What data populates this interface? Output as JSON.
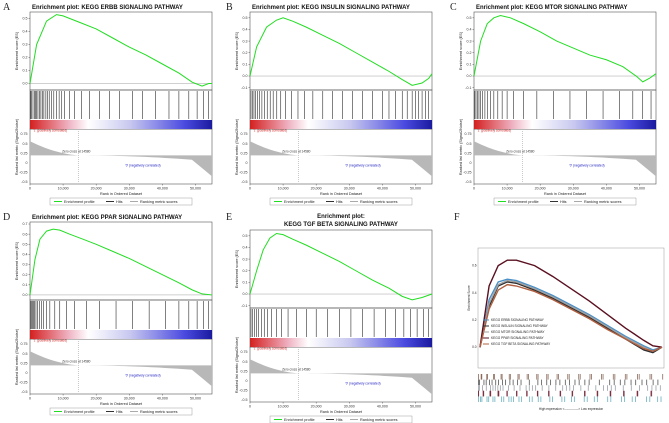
{
  "figure": {
    "panel_labels": [
      "A",
      "B",
      "C",
      "D",
      "E",
      "F"
    ]
  },
  "chart_data": [
    {
      "type": "line",
      "panel": "A",
      "title": "Enrichment plot: KEGG ERBB SIGNALING PATHWAY",
      "ylabel": "Enrichment score (ES)",
      "ylabel2": "Ranked list metric (Signal2Noise)",
      "xlabel": "Rank in Ordered Dataset",
      "ylim": [
        -0.05,
        0.55
      ],
      "yticks": [
        0.0,
        0.1,
        0.2,
        0.3,
        0.4,
        0.5
      ],
      "xticks": [
        0,
        10000,
        20000,
        30000,
        40000,
        50000
      ],
      "xtick_labels": [
        "0",
        "10,000",
        "20,000",
        "30,000",
        "40,000",
        "50,000"
      ],
      "metric_ticks": [
        "0.75",
        "0.5",
        "0.25",
        "0",
        "-0.25",
        "-0.5"
      ],
      "xlim": [
        0,
        55000
      ],
      "es_x": [
        0,
        2000,
        5000,
        8000,
        10000,
        12000,
        15000,
        20000,
        25000,
        30000,
        35000,
        40000,
        45000,
        49000,
        52000,
        54000,
        55000
      ],
      "es_y": [
        0.0,
        0.3,
        0.48,
        0.53,
        0.52,
        0.5,
        0.47,
        0.42,
        0.35,
        0.28,
        0.22,
        0.15,
        0.08,
        0.01,
        -0.02,
        0.0,
        0.0
      ],
      "hits": [
        200,
        500,
        900,
        1300,
        1600,
        2000,
        2400,
        2800,
        3300,
        3700,
        4200,
        4800,
        5300,
        5800,
        6500,
        7200,
        8000,
        8800,
        9600,
        10500,
        12000,
        13500,
        15500,
        18000,
        21000,
        24000,
        27000,
        31000,
        34000,
        38000,
        42000,
        45000,
        48000,
        50500,
        52500,
        54000
      ],
      "zero_cross": 14580,
      "zero_label": "Zero cross at 14580",
      "pos_label": "'1' (positively correlated)",
      "neg_label": "'0' (negatively correlated)",
      "legend": [
        "Enrichment profile",
        "Hits",
        "Ranking metric scores"
      ]
    },
    {
      "type": "line",
      "panel": "B",
      "title": "Enrichment plot: KEGG INSULIN SIGNALING PATHWAY",
      "ylabel": "Enrichment score (ES)",
      "ylabel2": "Ranked list metric (Signal2Noise)",
      "xlabel": "Rank in Ordered Dataset",
      "ylim": [
        -0.12,
        0.55
      ],
      "yticks": [
        -0.1,
        0.0,
        0.1,
        0.2,
        0.3,
        0.4,
        0.5
      ],
      "xticks": [
        0,
        10000,
        20000,
        30000,
        40000,
        50000
      ],
      "xtick_labels": [
        "0",
        "10,000",
        "20,000",
        "30,000",
        "40,000",
        "50,000"
      ],
      "metric_ticks": [
        "0.75",
        "0.5",
        "0.25",
        "0",
        "-0.25",
        "-0.5"
      ],
      "xlim": [
        0,
        55000
      ],
      "es_x": [
        0,
        2000,
        5000,
        8000,
        10000,
        13000,
        17000,
        22000,
        27000,
        32000,
        37000,
        42000,
        46000,
        49000,
        52000,
        54000,
        55000
      ],
      "es_y": [
        0.0,
        0.25,
        0.42,
        0.48,
        0.5,
        0.47,
        0.42,
        0.35,
        0.28,
        0.2,
        0.12,
        0.04,
        -0.03,
        -0.08,
        -0.06,
        -0.02,
        0.02
      ],
      "hits": [
        300,
        700,
        1200,
        1700,
        2300,
        2900,
        3600,
        4400,
        5200,
        6100,
        7000,
        8100,
        9300,
        10800,
        12500,
        14500,
        16500,
        19000,
        22000,
        25000,
        28000,
        31000,
        34000,
        37000,
        40000,
        42000,
        44000,
        46000,
        47500,
        49000,
        50000,
        51000,
        52000,
        53000,
        54000
      ],
      "zero_cross": 14580,
      "zero_label": "Zero cross at 14580",
      "pos_label": "'1' (positively correlated)",
      "neg_label": "'0' (negatively correlated)",
      "legend": [
        "Enrichment profile",
        "Hits",
        "Ranking metric scores"
      ]
    },
    {
      "type": "line",
      "panel": "C",
      "title": "Enrichment plot: KEGG MTOR SIGNALING PATHWAY",
      "ylabel": "Enrichment score (ES)",
      "ylabel2": "Ranked list metric (Signal2Noise)",
      "xlabel": "Rank in Ordered Dataset",
      "ylim": [
        -0.12,
        0.55
      ],
      "yticks": [
        -0.1,
        0.0,
        0.1,
        0.2,
        0.3,
        0.4,
        0.5
      ],
      "xticks": [
        0,
        10000,
        20000,
        30000,
        40000,
        50000
      ],
      "xtick_labels": [
        "0",
        "10,000",
        "20,000",
        "30,000",
        "40,000",
        "50,000"
      ],
      "metric_ticks": [
        "0.75",
        "0.5",
        "0.25",
        "0",
        "-0.25",
        "-0.5"
      ],
      "xlim": [
        0,
        55000
      ],
      "es_x": [
        0,
        2000,
        4000,
        6000,
        8000,
        11000,
        15000,
        20000,
        25000,
        30000,
        35000,
        40000,
        45000,
        49000,
        51000,
        53000,
        55000
      ],
      "es_y": [
        0.0,
        0.3,
        0.45,
        0.5,
        0.52,
        0.5,
        0.45,
        0.38,
        0.3,
        0.24,
        0.18,
        0.14,
        0.08,
        0.0,
        -0.05,
        -0.02,
        0.02
      ],
      "hits": [
        250,
        600,
        1000,
        1500,
        2000,
        2600,
        3300,
        4100,
        5000,
        6000,
        7200,
        8500,
        10000,
        12000,
        15000,
        19000,
        24000,
        29000,
        34000,
        39000,
        44000,
        48000,
        51000,
        53500
      ],
      "zero_cross": 14580,
      "zero_label": "Zero cross at 14580",
      "pos_label": "'1' (positively correlated)",
      "neg_label": "'0' (negatively correlated)",
      "legend": [
        "Enrichment profile",
        "Hits",
        "Ranking metric scores"
      ]
    },
    {
      "type": "line",
      "panel": "D",
      "title": "Enrichment plot: KEGG PPAR SIGNALING PATHWAY",
      "ylabel": "Enrichment score (ES)",
      "ylabel2": "Ranked list metric (Signal2Noise)",
      "xlabel": "Rank in Ordered Dataset",
      "ylim": [
        -0.05,
        0.72
      ],
      "yticks": [
        0.0,
        0.1,
        0.2,
        0.3,
        0.4,
        0.5,
        0.6,
        0.7
      ],
      "xticks": [
        0,
        10000,
        20000,
        30000,
        40000,
        50000
      ],
      "xtick_labels": [
        "0",
        "10,000",
        "20,000",
        "30,000",
        "40,000",
        "50,000"
      ],
      "metric_ticks": [
        "0.75",
        "0.5",
        "0.25",
        "0",
        "-0.25",
        "-0.5"
      ],
      "xlim": [
        0,
        55000
      ],
      "es_x": [
        0,
        1500,
        3000,
        5000,
        7000,
        9000,
        12000,
        16000,
        20000,
        25000,
        30000,
        35000,
        40000,
        45000,
        49000,
        52000,
        55000
      ],
      "es_y": [
        0.0,
        0.35,
        0.55,
        0.63,
        0.65,
        0.64,
        0.6,
        0.55,
        0.5,
        0.43,
        0.36,
        0.28,
        0.2,
        0.12,
        0.05,
        0.01,
        0.0
      ],
      "hits": [
        150,
        400,
        700,
        1000,
        1400,
        1800,
        2300,
        2800,
        3400,
        4100,
        5000,
        6000,
        7500,
        9000,
        11000,
        13500,
        17000,
        21000,
        26000,
        31000,
        36000,
        41000,
        45000,
        48000,
        50500,
        52500,
        54000
      ],
      "zero_cross": 14580,
      "zero_label": "Zero cross at 14580",
      "pos_label": "'1' (positively correlated)",
      "neg_label": "'0' (negatively correlated)",
      "legend": [
        "Enrichment profile",
        "Hits",
        "Ranking metric scores"
      ]
    },
    {
      "type": "line",
      "panel": "E",
      "title": "Enrichment plot:",
      "title2": "KEGG TGF BETA SIGNALING PATHWAY",
      "ylabel": "Enrichment score (ES)",
      "ylabel2": "Ranked list metric (Signal2Noise)",
      "xlabel": "Rank in Ordered Dataset",
      "ylim": [
        -0.12,
        0.55
      ],
      "yticks": [
        -0.1,
        0.0,
        0.1,
        0.2,
        0.3,
        0.4,
        0.5
      ],
      "xticks": [
        0,
        10000,
        20000,
        30000,
        40000,
        50000
      ],
      "xtick_labels": [
        "0",
        "10,000",
        "20,000",
        "30,000",
        "40,000",
        "50,000"
      ],
      "metric_ticks": [
        "0.75",
        "0.5",
        "0.25",
        "0",
        "-0.25",
        "-0.5"
      ],
      "xlim": [
        0,
        55000
      ],
      "es_x": [
        0,
        2000,
        4000,
        6000,
        8000,
        10000,
        13000,
        17000,
        22000,
        27000,
        32000,
        37000,
        42000,
        46000,
        49000,
        52000,
        55000
      ],
      "es_y": [
        0.0,
        0.2,
        0.38,
        0.48,
        0.52,
        0.51,
        0.47,
        0.42,
        0.35,
        0.28,
        0.2,
        0.12,
        0.05,
        -0.02,
        -0.05,
        -0.03,
        0.0
      ],
      "hits": [
        300,
        800,
        1300,
        1900,
        2600,
        3400,
        4300,
        5300,
        6500,
        8000,
        9500,
        11500,
        14000,
        17000,
        20000,
        23500,
        27000,
        30500,
        34000,
        37500,
        41000,
        44000,
        46500,
        48500,
        50500,
        52500,
        54000
      ],
      "zero_cross": 14580,
      "zero_label": "Zero cross at 14580",
      "pos_label": "'1' (positively correlated)",
      "neg_label": "'0' (negatively correlated)",
      "legend": [
        "Enrichment profile",
        "Hits",
        "Ranking metric scores"
      ]
    },
    {
      "type": "line",
      "panel": "F",
      "ylabel": "Enrichment Score",
      "yticks": [
        "0.6",
        "0.4",
        "0.2",
        "0.0"
      ],
      "ylim": [
        -0.05,
        0.7
      ],
      "xlim": [
        0,
        100
      ],
      "bottom_label": "High expression <-------------> Low expression",
      "series": [
        {
          "name": "KEGG ERBB SIGNALING PATHWAY",
          "color": "#4a90c8",
          "x": [
            0,
            5,
            10,
            15,
            20,
            30,
            40,
            50,
            60,
            70,
            80,
            90,
            95,
            100
          ],
          "y": [
            0.0,
            0.35,
            0.48,
            0.5,
            0.49,
            0.44,
            0.38,
            0.31,
            0.24,
            0.16,
            0.08,
            0.01,
            -0.02,
            0.0
          ]
        },
        {
          "name": "KEGG INSULIN SIGNALING PATHWAY",
          "color": "#2e2e2e",
          "x": [
            0,
            5,
            10,
            15,
            20,
            30,
            40,
            50,
            60,
            70,
            80,
            90,
            95,
            100
          ],
          "y": [
            0.0,
            0.3,
            0.45,
            0.48,
            0.47,
            0.42,
            0.36,
            0.29,
            0.22,
            0.14,
            0.06,
            -0.02,
            -0.04,
            0.0
          ]
        },
        {
          "name": "KEGG MTOR SIGNALING PATHWAY",
          "color": "#a0a0a0",
          "x": [
            0,
            5,
            10,
            15,
            20,
            30,
            40,
            50,
            60,
            70,
            80,
            90,
            95,
            100
          ],
          "y": [
            0.0,
            0.32,
            0.46,
            0.49,
            0.48,
            0.43,
            0.37,
            0.3,
            0.23,
            0.15,
            0.07,
            0.0,
            -0.03,
            0.0
          ]
        },
        {
          "name": "KEGG PPAR SIGNALING PATHWAY",
          "color": "#5a1020",
          "x": [
            0,
            5,
            10,
            15,
            20,
            30,
            40,
            50,
            60,
            70,
            80,
            90,
            95,
            100
          ],
          "y": [
            0.0,
            0.45,
            0.6,
            0.64,
            0.64,
            0.6,
            0.52,
            0.43,
            0.34,
            0.24,
            0.14,
            0.05,
            0.01,
            0.0
          ]
        },
        {
          "name": "KEGG TGF BETA SIGNALING PATHWAY",
          "color": "#b06040",
          "x": [
            0,
            5,
            10,
            15,
            20,
            30,
            40,
            50,
            60,
            70,
            80,
            90,
            95,
            100
          ],
          "y": [
            0.0,
            0.28,
            0.42,
            0.46,
            0.45,
            0.41,
            0.35,
            0.28,
            0.21,
            0.13,
            0.06,
            -0.01,
            -0.03,
            0.0
          ]
        }
      ]
    }
  ]
}
